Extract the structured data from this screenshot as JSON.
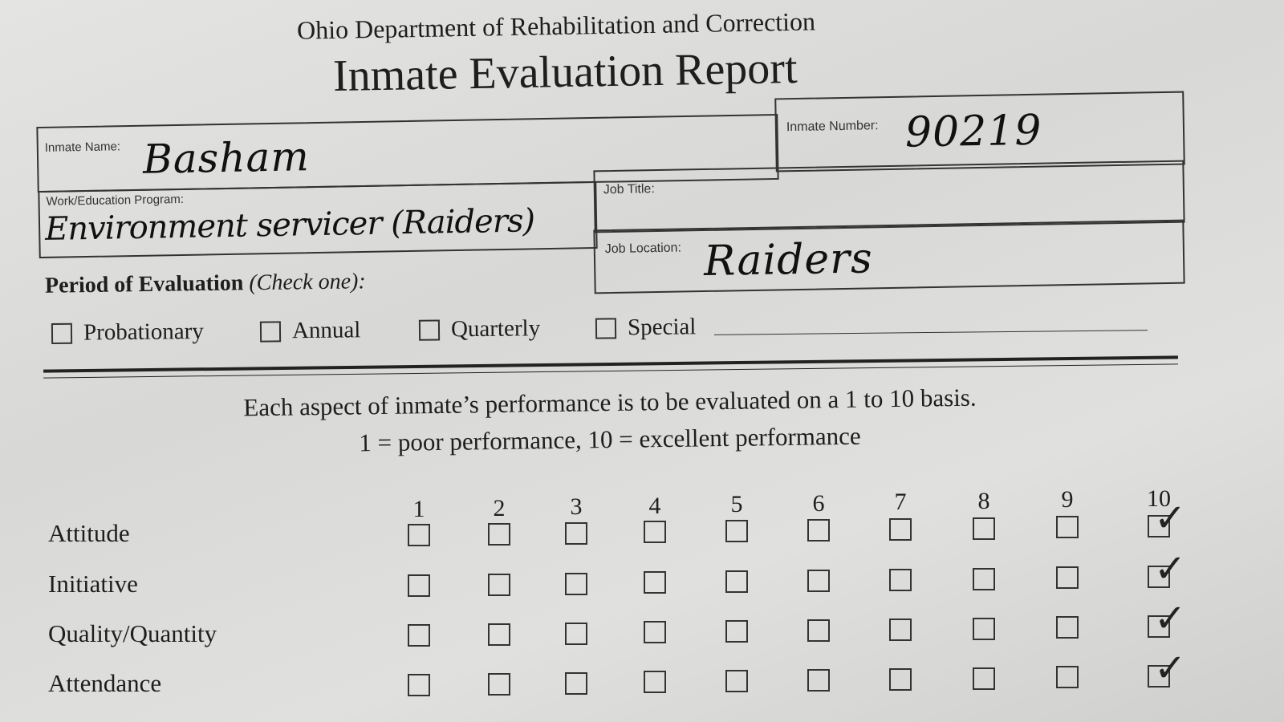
{
  "header": {
    "agency": "Ohio Department of Rehabilitation and Correction",
    "title": "Inmate Evaluation Report"
  },
  "fields": {
    "inmate_name": {
      "label": "Inmate Name:",
      "value": "Basham"
    },
    "inmate_number": {
      "label": "Inmate Number:",
      "value": "90219"
    },
    "program": {
      "label": "Work/Education Program:",
      "value": "Environment servicer (Raiders)"
    },
    "job_title": {
      "label": "Job Title:",
      "value": ""
    },
    "job_location": {
      "label": "Job Location:",
      "value": "Raiders"
    }
  },
  "period": {
    "label": "Period of Evaluation",
    "hint": "(Check one):",
    "options": [
      {
        "label": "Probationary",
        "checked": false
      },
      {
        "label": "Annual",
        "checked": false
      },
      {
        "label": "Quarterly",
        "checked": false
      },
      {
        "label": "Special",
        "checked": false
      }
    ]
  },
  "instructions": {
    "line1": "Each aspect of inmate’s performance is to be evaluated on a 1 to 10 basis.",
    "line2": "1 = poor performance, 10 = excellent performance"
  },
  "ratings": {
    "scale": [
      "1",
      "2",
      "3",
      "4",
      "5",
      "6",
      "7",
      "8",
      "9",
      "10"
    ],
    "rows": [
      {
        "label": "Attitude",
        "score": 10
      },
      {
        "label": "Initiative",
        "score": 10
      },
      {
        "label": "Quality/Quantity",
        "score": 10
      },
      {
        "label": "Attendance",
        "score": 10
      }
    ],
    "check_glyph": "✓"
  }
}
